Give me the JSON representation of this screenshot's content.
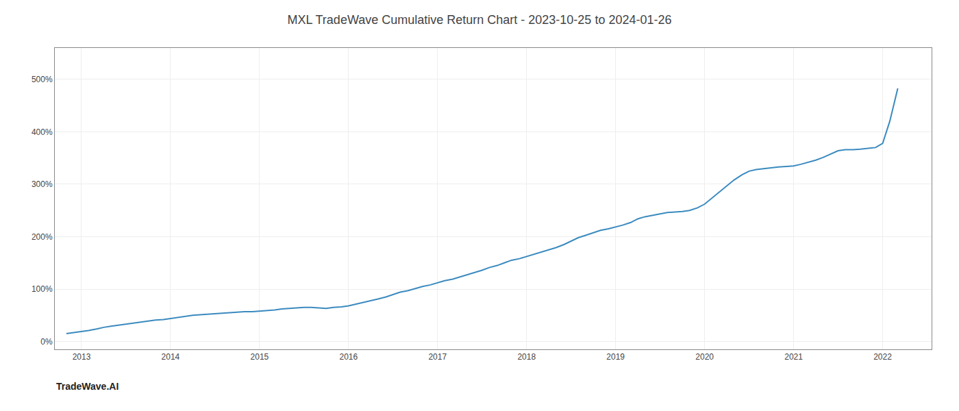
{
  "chart_data": {
    "type": "line",
    "title": "MXL TradeWave Cumulative Return Chart - 2023-10-25 to 2024-01-26",
    "annotations": [
      "TradeWave.AI"
    ],
    "color": "#3a8abf",
    "grid": true,
    "xlim": [
      2012.7,
      2022.55
    ],
    "xticks": [
      2013,
      2014,
      2015,
      2016,
      2017,
      2018,
      2019,
      2020,
      2021,
      2022
    ],
    "ylim": [
      -15,
      560
    ],
    "yticks": [
      {
        "value": 0,
        "label": "0%"
      },
      {
        "value": 100,
        "label": "100%"
      },
      {
        "value": 200,
        "label": "200%"
      },
      {
        "value": 300,
        "label": "300%"
      },
      {
        "value": 400,
        "label": "400%"
      },
      {
        "value": 500,
        "label": "500%"
      }
    ],
    "x": [
      2012.83,
      2012.92,
      2013.0,
      2013.08,
      2013.17,
      2013.25,
      2013.33,
      2013.42,
      2013.5,
      2013.58,
      2013.67,
      2013.75,
      2013.83,
      2013.92,
      2014.0,
      2014.08,
      2014.17,
      2014.25,
      2014.33,
      2014.42,
      2014.5,
      2014.58,
      2014.67,
      2014.75,
      2014.83,
      2014.92,
      2015.0,
      2015.08,
      2015.17,
      2015.25,
      2015.33,
      2015.42,
      2015.5,
      2015.58,
      2015.67,
      2015.75,
      2015.83,
      2015.92,
      2016.0,
      2016.08,
      2016.17,
      2016.25,
      2016.33,
      2016.42,
      2016.5,
      2016.58,
      2016.67,
      2016.75,
      2016.83,
      2016.92,
      2017.0,
      2017.08,
      2017.17,
      2017.25,
      2017.33,
      2017.42,
      2017.5,
      2017.58,
      2017.67,
      2017.75,
      2017.83,
      2017.92,
      2018.0,
      2018.08,
      2018.17,
      2018.25,
      2018.33,
      2018.42,
      2018.5,
      2018.58,
      2018.67,
      2018.75,
      2018.83,
      2018.92,
      2019.0,
      2019.08,
      2019.17,
      2019.25,
      2019.33,
      2019.42,
      2019.5,
      2019.58,
      2019.67,
      2019.75,
      2019.83,
      2019.92,
      2020.0,
      2020.08,
      2020.17,
      2020.25,
      2020.33,
      2020.42,
      2020.5,
      2020.58,
      2020.67,
      2020.75,
      2020.83,
      2020.92,
      2021.0,
      2021.08,
      2021.17,
      2021.25,
      2021.33,
      2021.42,
      2021.5,
      2021.58,
      2021.67,
      2021.75,
      2021.83,
      2021.92,
      2022.0,
      2022.08,
      2022.17
    ],
    "values": [
      15,
      17,
      19,
      21,
      24,
      27,
      29,
      31,
      33,
      35,
      37,
      39,
      41,
      42,
      44,
      46,
      48,
      50,
      51,
      52,
      53,
      54,
      55,
      56,
      57,
      57,
      58,
      59,
      60,
      62,
      63,
      64,
      65,
      65,
      64,
      63,
      65,
      66,
      68,
      71,
      74,
      77,
      81,
      85,
      90,
      94,
      97,
      101,
      105,
      108,
      112,
      116,
      119,
      123,
      127,
      131,
      136,
      141,
      145,
      150,
      155,
      158,
      162,
      166,
      170,
      174,
      179,
      185,
      192,
      198,
      203,
      208,
      212,
      215,
      218,
      222,
      227,
      234,
      238,
      241,
      244,
      246,
      247,
      248,
      250,
      255,
      262,
      273,
      285,
      296,
      308,
      318,
      325,
      328,
      330,
      332,
      333,
      334,
      335,
      338,
      342,
      346,
      351,
      358,
      364,
      366,
      366,
      367,
      368,
      370,
      378,
      420,
      483
    ]
  }
}
